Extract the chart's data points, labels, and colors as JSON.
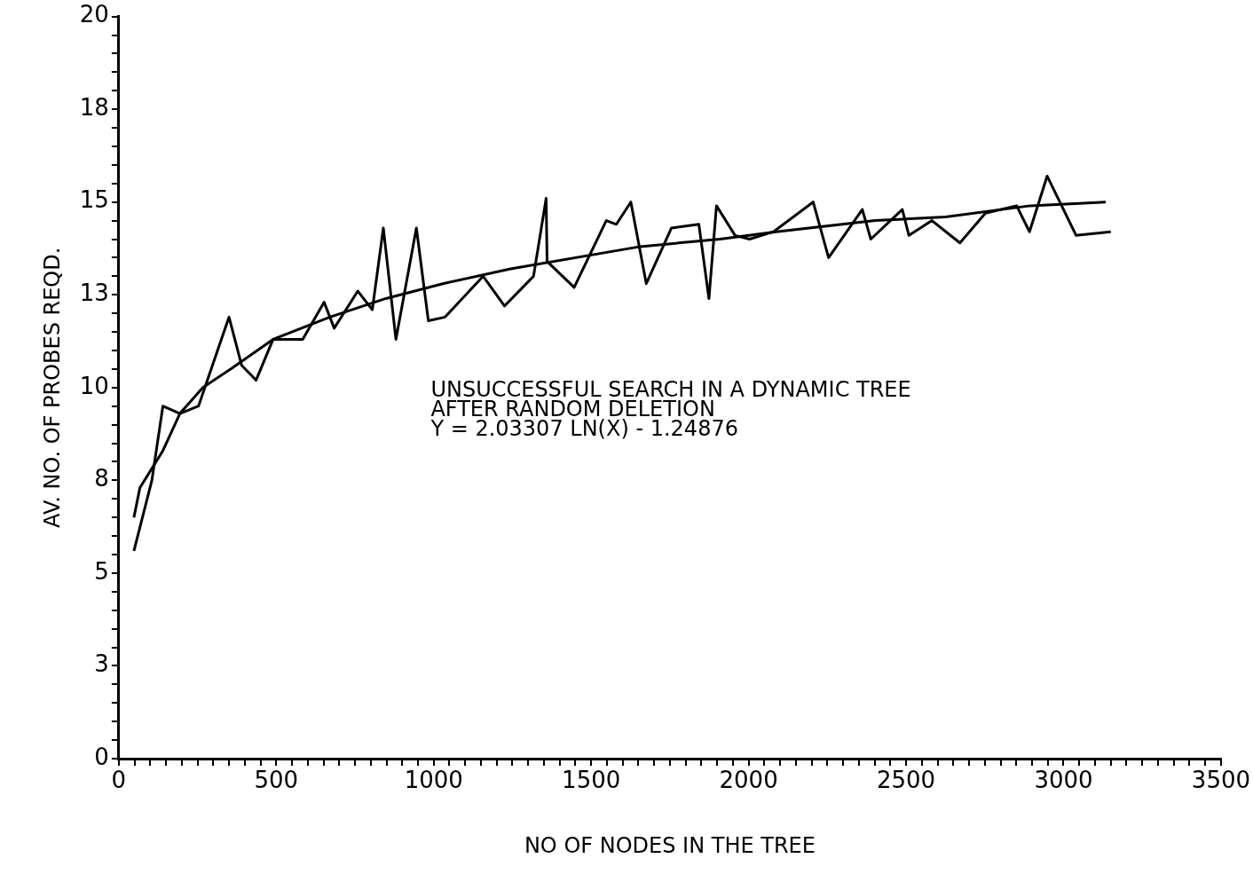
{
  "chart_data": {
    "type": "line",
    "xlabel": "NO OF NODES IN THE TREE",
    "ylabel": "AV. NO. OF PROBES REQD.",
    "annotations": [
      "UNSUCCESSFUL SEARCH IN A DYNAMIC TREE",
      "AFTER RANDOM DELETION",
      "Y = 2.03307 LN(X) - 1.24876"
    ],
    "xlim": [
      0,
      3500
    ],
    "ylim": [
      0,
      20
    ],
    "xticks": [
      0,
      {
        "value": 50,
        "label": null
      },
      {
        "value": 100,
        "label": null
      },
      {
        "value": 150,
        "label": null
      },
      {
        "value": 200,
        "label": null
      },
      {
        "value": 250,
        "label": null
      },
      {
        "value": 300,
        "label": null
      },
      {
        "value": 350,
        "label": null
      },
      {
        "value": 400,
        "label": null
      },
      {
        "value": 450,
        "label": null
      },
      500,
      {
        "value": 550,
        "label": null
      },
      {
        "value": 600,
        "label": null
      },
      {
        "value": 650,
        "label": null
      },
      {
        "value": 700,
        "label": null
      },
      {
        "value": 750,
        "label": null
      },
      {
        "value": 800,
        "label": null
      },
      {
        "value": 850,
        "label": null
      },
      {
        "value": 900,
        "label": null
      },
      {
        "value": 950,
        "label": null
      },
      1000,
      {
        "value": 1050,
        "label": null
      },
      {
        "value": 1100,
        "label": null
      },
      {
        "value": 1150,
        "label": null
      },
      {
        "value": 1200,
        "label": null
      },
      {
        "value": 1250,
        "label": null
      },
      {
        "value": 1300,
        "label": null
      },
      {
        "value": 1350,
        "label": null
      },
      {
        "value": 1400,
        "label": null
      },
      {
        "value": 1450,
        "label": null
      },
      1500,
      {
        "value": 1550,
        "label": null
      },
      {
        "value": 1600,
        "label": null
      },
      {
        "value": 1650,
        "label": null
      },
      {
        "value": 1700,
        "label": null
      },
      {
        "value": 1750,
        "label": null
      },
      {
        "value": 1800,
        "label": null
      },
      {
        "value": 1850,
        "label": null
      },
      {
        "value": 1900,
        "label": null
      },
      {
        "value": 1950,
        "label": null
      },
      2000,
      {
        "value": 2050,
        "label": null
      },
      {
        "value": 2100,
        "label": null
      },
      {
        "value": 2150,
        "label": null
      },
      {
        "value": 2200,
        "label": null
      },
      {
        "value": 2250,
        "label": null
      },
      {
        "value": 2300,
        "label": null
      },
      {
        "value": 2350,
        "label": null
      },
      {
        "value": 2400,
        "label": null
      },
      {
        "value": 2450,
        "label": null
      },
      2500,
      {
        "value": 2550,
        "label": null
      },
      {
        "value": 2600,
        "label": null
      },
      {
        "value": 2650,
        "label": null
      },
      {
        "value": 2700,
        "label": null
      },
      {
        "value": 2750,
        "label": null
      },
      {
        "value": 2800,
        "label": null
      },
      {
        "value": 2850,
        "label": null
      },
      {
        "value": 2900,
        "label": null
      },
      {
        "value": 2950,
        "label": null
      },
      3000,
      {
        "value": 3050,
        "label": null
      },
      {
        "value": 3100,
        "label": null
      },
      {
        "value": 3150,
        "label": null
      },
      {
        "value": 3200,
        "label": null
      },
      {
        "value": 3250,
        "label": null
      },
      {
        "value": 3300,
        "label": null
      },
      {
        "value": 3350,
        "label": null
      },
      {
        "value": 3400,
        "label": null
      },
      {
        "value": 3450,
        "label": null
      },
      3500
    ],
    "yticks": [
      0,
      {
        "value": 0.5,
        "label": null
      },
      {
        "value": 1,
        "label": null
      },
      {
        "value": 1.5,
        "label": null
      },
      {
        "value": 2,
        "label": null
      },
      {
        "value": 2.5,
        "label": "3"
      },
      {
        "value": 3,
        "label": null
      },
      {
        "value": 3.5,
        "label": null
      },
      {
        "value": 4,
        "label": null
      },
      {
        "value": 4.5,
        "label": null
      },
      5,
      {
        "value": 5.5,
        "label": null
      },
      {
        "value": 6,
        "label": null
      },
      {
        "value": 6.5,
        "label": null
      },
      {
        "value": 7,
        "label": null
      },
      {
        "value": 7.5,
        "label": "8"
      },
      {
        "value": 8,
        "label": null
      },
      {
        "value": 8.5,
        "label": null
      },
      {
        "value": 9,
        "label": null
      },
      {
        "value": 9.5,
        "label": null
      },
      10,
      {
        "value": 10.5,
        "label": null
      },
      {
        "value": 11,
        "label": null
      },
      {
        "value": 11.5,
        "label": null
      },
      {
        "value": 12,
        "label": null
      },
      {
        "value": 12.5,
        "label": "13"
      },
      {
        "value": 13,
        "label": null
      },
      {
        "value": 13.5,
        "label": null
      },
      {
        "value": 14,
        "label": null
      },
      {
        "value": 14.5,
        "label": null
      },
      15,
      {
        "value": 15.5,
        "label": null
      },
      {
        "value": 16,
        "label": null
      },
      {
        "value": 16.5,
        "label": null
      },
      {
        "value": 17,
        "label": null
      },
      {
        "value": 17.5,
        "label": "18"
      },
      {
        "value": 18,
        "label": null
      },
      {
        "value": 18.5,
        "label": null
      },
      {
        "value": 19,
        "label": null
      },
      {
        "value": 19.5,
        "label": null
      },
      20
    ],
    "grid": false,
    "marker": "none",
    "line_style": "solid",
    "series": [
      {
        "color": "#000000",
        "x": [
          48,
          105,
          140,
          194,
          253,
          350,
          390,
          436,
          490,
          536,
          584,
          652,
          684,
          759,
          805,
          840,
          880,
          945,
          983,
          1036,
          1157,
          1225,
          1317,
          1357,
          1360,
          1446,
          1548,
          1580,
          1626,
          1675,
          1755,
          1842,
          1874,
          1898,
          1957,
          2003,
          2079,
          2205,
          2254,
          2361,
          2388,
          2488,
          2509,
          2582,
          2671,
          2752,
          2851,
          2892,
          2948,
          3040,
          3150
        ],
        "values": [
          5.6,
          7.5,
          9.5,
          9.3,
          9.5,
          11.9,
          10.6,
          10.2,
          11.3,
          11.3,
          11.3,
          12.3,
          11.6,
          12.6,
          12.1,
          14.3,
          11.3,
          14.3,
          11.8,
          11.9,
          13.0,
          12.2,
          13.0,
          15.1,
          13.4,
          12.7,
          14.5,
          14.4,
          15.0,
          12.8,
          14.3,
          14.4,
          12.4,
          14.9,
          14.1,
          14.0,
          14.2,
          15.0,
          13.5,
          14.8,
          14.0,
          14.8,
          14.1,
          14.5,
          13.9,
          14.7,
          14.9,
          14.2,
          15.7,
          14.1,
          14.2
        ]
      },
      {
        "color": "#000000",
        "x": [
          48,
          67,
          140,
          194,
          267,
          355,
          490,
          670,
          848,
          1029,
          1244,
          1656,
          1909,
          2087,
          2402,
          2625,
          2894,
          3134
        ],
        "values": [
          6.5,
          7.3,
          8.3,
          9.3,
          10.0,
          10.5,
          11.3,
          11.9,
          12.4,
          12.8,
          13.2,
          13.8,
          14.0,
          14.2,
          14.5,
          14.6,
          14.9,
          15.0
        ]
      }
    ]
  }
}
